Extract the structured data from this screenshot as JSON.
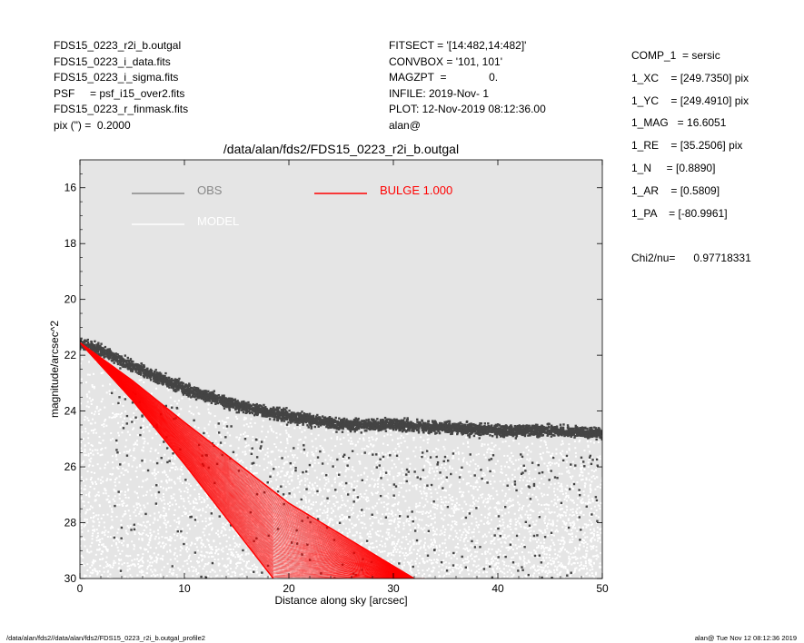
{
  "header_left": [
    "FDS15_0223_r2i_b.outgal",
    "FDS15_0223_i_data.fits",
    "FDS15_0223_i_sigma.fits",
    "PSF     = psf_i15_over2.fits",
    "FDS15_0223_r_finmask.fits",
    "pix (\") =  0.2000"
  ],
  "header_mid": [
    "FITSECT = '[14:482,14:482]'",
    "CONVBOX = '101, 101'",
    "MAGZPT  =              0.",
    "INFILE: 2019-Nov- 1",
    "PLOT: 12-Nov-2019 08:12:36.00",
    "alan@"
  ],
  "header_right": [
    "COMP_1  = sersic",
    "1_XC    = [249.7350] pix",
    "1_YC    = [249.4910] pix",
    "1_MAG   = 16.6051",
    "1_RE    = [35.2506] pix",
    "1_N     = [0.8890]",
    "1_AR    = [0.5809]",
    "1_PA    = [-80.9961]",
    "",
    "Chi2/nu=      0.97718331"
  ],
  "footer_left": "/data/alan/fds2//data/alan/fds2/FDS15_0223_r2i_b.outgal_profile2",
  "footer_right": "alan@  Tue Nov 12 08:12:36 2019",
  "colors": {
    "plot_bg": "#e5e5e5",
    "obs": "#444444",
    "obs_legend": "#888888",
    "model": "#ffffff",
    "bulge": "#ff0000"
  },
  "chart_data": {
    "type": "scatter",
    "title": "/data/alan/fds2/FDS15_0223_r2i_b.outgal",
    "xlabel": "Distance along sky [arcsec]",
    "ylabel": "magnitude/arcsec^2",
    "xlim": [
      0,
      50
    ],
    "ylim": [
      30,
      15
    ],
    "y_inverted": true,
    "xticks": [
      0,
      10,
      20,
      30,
      40,
      50
    ],
    "yticks": [
      16,
      18,
      20,
      22,
      24,
      26,
      28,
      30
    ],
    "grid": false,
    "legend": [
      {
        "name": "OBS",
        "color": "#888888",
        "line_color": "#888888"
      },
      {
        "name": "MODEL",
        "color": "#ffffff",
        "line_color": "#ffffff"
      },
      {
        "name": "BULGE  1.000",
        "color": "#ff0000",
        "line_color": "#ff0000"
      }
    ],
    "series": [
      {
        "name": "OBS",
        "description_points": [
          {
            "x": 0.0,
            "y": 21.6
          },
          {
            "x": 2.0,
            "y": 21.8
          },
          {
            "x": 5.0,
            "y": 22.4
          },
          {
            "x": 10.0,
            "y": 23.2
          },
          {
            "x": 15.0,
            "y": 23.8
          },
          {
            "x": 20.0,
            "y": 24.2
          },
          {
            "x": 25.0,
            "y": 24.5
          },
          {
            "x": 30.0,
            "y": 24.5
          },
          {
            "x": 35.0,
            "y": 24.6
          },
          {
            "x": 40.0,
            "y": 24.7
          },
          {
            "x": 45.0,
            "y": 24.7
          },
          {
            "x": 50.0,
            "y": 24.8
          }
        ],
        "scatter_y": 0.35
      },
      {
        "name": "MODEL",
        "upper_edge": [
          {
            "x": 0.0,
            "y": 21.6
          },
          {
            "x": 10.0,
            "y": 23.2
          },
          {
            "x": 20.0,
            "y": 24.2
          },
          {
            "x": 30.0,
            "y": 24.6
          },
          {
            "x": 40.0,
            "y": 24.8
          },
          {
            "x": 50.0,
            "y": 25.0
          }
        ],
        "lower_reach": 30.0
      },
      {
        "name": "BULGE  1.000",
        "inner_edge": [
          {
            "x": 0.0,
            "y": 21.55
          },
          {
            "x": 5.0,
            "y": 22.9
          },
          {
            "x": 10.0,
            "y": 24.4
          },
          {
            "x": 20.0,
            "y": 27.3
          },
          {
            "x": 32.0,
            "y": 30.0
          }
        ],
        "outer_edge": [
          {
            "x": 0.0,
            "y": 21.55
          },
          {
            "x": 5.0,
            "y": 23.6
          },
          {
            "x": 10.0,
            "y": 25.9
          },
          {
            "x": 18.5,
            "y": 30.0
          }
        ]
      }
    ]
  }
}
